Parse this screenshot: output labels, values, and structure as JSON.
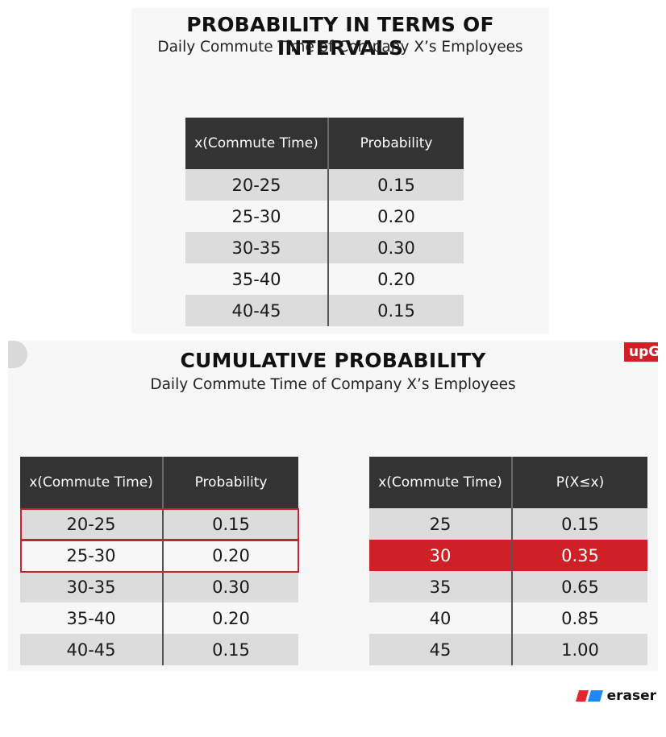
{
  "slide1": {
    "title": "PROBABILITY IN TERMS OF INTERVALS",
    "subtitle": "Daily Commute Time of Company X’s Employees",
    "table": {
      "headers": [
        "x(Commute Time)",
        "Probability"
      ],
      "rows": [
        [
          "20-25",
          "0.15"
        ],
        [
          "25-30",
          "0.20"
        ],
        [
          "30-35",
          "0.30"
        ],
        [
          "35-40",
          "0.20"
        ],
        [
          "40-45",
          "0.15"
        ]
      ]
    }
  },
  "slide2": {
    "title": "CUMULATIVE PROBABILITY",
    "subtitle": "Daily Commute Time of Company X’s Employees",
    "logo_text": "upG",
    "left_table": {
      "headers": [
        "x(Commute Time)",
        "Probability"
      ],
      "rows": [
        [
          "20-25",
          "0.15"
        ],
        [
          "25-30",
          "0.20"
        ],
        [
          "30-35",
          "0.30"
        ],
        [
          "35-40",
          "0.20"
        ],
        [
          "40-45",
          "0.15"
        ]
      ],
      "outlined_rows": [
        0,
        1
      ]
    },
    "right_table": {
      "headers": [
        "x(Commute Time)",
        "P(X≤x)"
      ],
      "rows": [
        [
          "25",
          "0.15"
        ],
        [
          "30",
          "0.35"
        ],
        [
          "35",
          "0.65"
        ],
        [
          "40",
          "0.85"
        ],
        [
          "45",
          "1.00"
        ]
      ],
      "highlighted_row": 1
    }
  },
  "watermark": {
    "text": "eraser",
    "icon": "eraser-logo-icon",
    "colors": [
      "#e8242f",
      "#1e88ff"
    ]
  },
  "colors": {
    "header_bg": "#333333",
    "row_shade": "#dcdcdc",
    "accent_red": "#d02027"
  }
}
